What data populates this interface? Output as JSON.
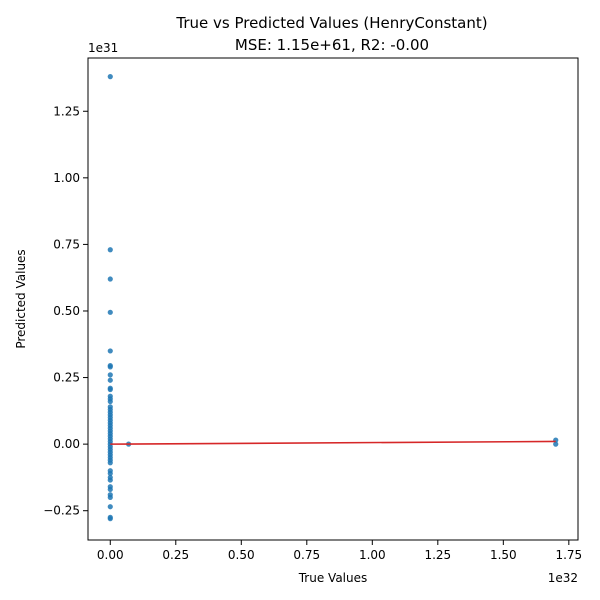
{
  "chart_data": {
    "type": "scatter",
    "title": "True vs Predicted Values (HenryConstant)",
    "subtitle": "MSE: 1.15e+61, R2: -0.00",
    "xlabel": "True Values",
    "ylabel": "Predicted Values",
    "x_offset_label": "1e32",
    "y_offset_label": "1e31",
    "xlim": [
      -0.085,
      1.785
    ],
    "ylim": [
      -0.36,
      1.45
    ],
    "x_units_note": "x values in units of 1e32",
    "y_units_note": "y values in units of 1e31",
    "x_ticks": [
      0.0,
      0.25,
      0.5,
      0.75,
      1.0,
      1.25,
      1.5,
      1.75
    ],
    "x_tick_labels": [
      "0.00",
      "0.25",
      "0.50",
      "0.75",
      "1.00",
      "1.25",
      "1.50",
      "1.75"
    ],
    "y_ticks": [
      -0.25,
      0.0,
      0.25,
      0.5,
      0.75,
      1.0,
      1.25
    ],
    "y_tick_labels": [
      "−0.25",
      "0.00",
      "0.25",
      "0.50",
      "0.75",
      "1.00",
      "1.25"
    ],
    "grid": false,
    "point_color": "#1f77b4",
    "line_color": "#d62728",
    "points": [
      {
        "x": 0.0,
        "y": 1.38
      },
      {
        "x": 0.0,
        "y": 0.73
      },
      {
        "x": 0.0,
        "y": 0.62
      },
      {
        "x": 0.0,
        "y": 0.495
      },
      {
        "x": 0.0,
        "y": 0.35
      },
      {
        "x": 0.0,
        "y": 0.295
      },
      {
        "x": 0.0,
        "y": 0.29
      },
      {
        "x": 0.0,
        "y": 0.26
      },
      {
        "x": 0.0,
        "y": 0.24
      },
      {
        "x": 0.0,
        "y": 0.21
      },
      {
        "x": 0.0,
        "y": 0.205
      },
      {
        "x": 0.0,
        "y": 0.18
      },
      {
        "x": 0.0,
        "y": 0.17
      },
      {
        "x": 0.0,
        "y": 0.16
      },
      {
        "x": 0.0,
        "y": 0.14
      },
      {
        "x": 0.0,
        "y": 0.13
      },
      {
        "x": 0.0,
        "y": 0.12
      },
      {
        "x": 0.0,
        "y": 0.11
      },
      {
        "x": 0.0,
        "y": 0.1
      },
      {
        "x": 0.0,
        "y": 0.09
      },
      {
        "x": 0.0,
        "y": 0.08
      },
      {
        "x": 0.0,
        "y": 0.07
      },
      {
        "x": 0.0,
        "y": 0.06
      },
      {
        "x": 0.0,
        "y": 0.05
      },
      {
        "x": 0.0,
        "y": 0.04
      },
      {
        "x": 0.0,
        "y": 0.03
      },
      {
        "x": 0.0,
        "y": 0.02
      },
      {
        "x": 0.0,
        "y": 0.01
      },
      {
        "x": 0.0,
        "y": 0.0
      },
      {
        "x": 0.0,
        "y": -0.01
      },
      {
        "x": 0.0,
        "y": -0.02
      },
      {
        "x": 0.0,
        "y": -0.03
      },
      {
        "x": 0.0,
        "y": -0.04
      },
      {
        "x": 0.0,
        "y": -0.05
      },
      {
        "x": 0.0,
        "y": -0.06
      },
      {
        "x": 0.0,
        "y": -0.07
      },
      {
        "x": 0.0,
        "y": -0.1
      },
      {
        "x": 0.0,
        "y": -0.11
      },
      {
        "x": 0.0,
        "y": -0.125
      },
      {
        "x": 0.0,
        "y": -0.135
      },
      {
        "x": 0.0,
        "y": -0.16
      },
      {
        "x": 0.0,
        "y": -0.17
      },
      {
        "x": 0.0,
        "y": -0.19
      },
      {
        "x": 0.0,
        "y": -0.2
      },
      {
        "x": 0.0,
        "y": -0.235
      },
      {
        "x": 0.0,
        "y": -0.275
      },
      {
        "x": 0.0,
        "y": -0.28
      },
      {
        "x": 0.07,
        "y": 0.0
      },
      {
        "x": 1.7,
        "y": 0.015
      },
      {
        "x": 1.7,
        "y": 0.0
      }
    ],
    "fit_line": {
      "x": [
        0.0,
        1.7
      ],
      "y": [
        0.0,
        0.01
      ]
    }
  }
}
